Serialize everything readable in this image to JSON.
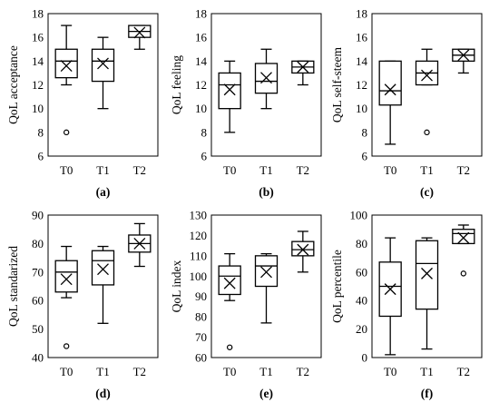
{
  "chart_data": [
    {
      "type": "box",
      "panel_label": "(a)",
      "ylabel": "QoL acceptance",
      "ylim": [
        6,
        18
      ],
      "yticks": [
        "6",
        "8",
        "10",
        "12",
        "14",
        "16",
        "18"
      ],
      "categories": [
        "T0",
        "T1",
        "T2"
      ],
      "boxes": [
        {
          "min": 12,
          "q1": 12.6,
          "median": 14,
          "q3": 15,
          "max": 17,
          "mean": 13.6,
          "outliers": [
            8
          ]
        },
        {
          "min": 10,
          "q1": 12.3,
          "median": 14,
          "q3": 15,
          "max": 16,
          "mean": 13.8,
          "outliers": []
        },
        {
          "min": 15,
          "q1": 16,
          "median": 16.5,
          "q3": 17,
          "max": 17,
          "mean": 16.4,
          "outliers": []
        }
      ]
    },
    {
      "type": "box",
      "panel_label": "(b)",
      "ylabel": "QoL feeling",
      "ylim": [
        6,
        18
      ],
      "yticks": [
        "6",
        "8",
        "10",
        "12",
        "14",
        "16",
        "18"
      ],
      "categories": [
        "T0",
        "T1",
        "T2"
      ],
      "boxes": [
        {
          "min": 8,
          "q1": 10,
          "median": 12,
          "q3": 13,
          "max": 14,
          "mean": 11.6,
          "outliers": []
        },
        {
          "min": 10,
          "q1": 11.3,
          "median": 12.3,
          "q3": 13.8,
          "max": 15,
          "mean": 12.6,
          "outliers": []
        },
        {
          "min": 12,
          "q1": 13,
          "median": 13.5,
          "q3": 14,
          "max": 14,
          "mean": 13.5,
          "outliers": []
        }
      ]
    },
    {
      "type": "box",
      "panel_label": "(c)",
      "ylabel": "QoL self-steem",
      "ylim": [
        6,
        18
      ],
      "yticks": [
        "6",
        "8",
        "10",
        "12",
        "14",
        "16",
        "18"
      ],
      "categories": [
        "T0",
        "T1",
        "T2"
      ],
      "boxes": [
        {
          "min": 7,
          "q1": 10.3,
          "median": 11.5,
          "q3": 14,
          "max": 14,
          "mean": 11.6,
          "outliers": []
        },
        {
          "min": 12,
          "q1": 12,
          "median": 13,
          "q3": 14,
          "max": 15,
          "mean": 12.8,
          "outliers": [
            8
          ]
        },
        {
          "min": 13,
          "q1": 14,
          "median": 14.5,
          "q3": 15,
          "max": 15,
          "mean": 14.5,
          "outliers": []
        }
      ]
    },
    {
      "type": "box",
      "panel_label": "(d)",
      "ylabel": "QoL standarized",
      "ylim": [
        40,
        90
      ],
      "yticks": [
        "40",
        "50",
        "60",
        "70",
        "80",
        "90"
      ],
      "categories": [
        "T0",
        "T1",
        "T2"
      ],
      "boxes": [
        {
          "min": 61,
          "q1": 63,
          "median": 70,
          "q3": 74,
          "max": 79,
          "mean": 67.5,
          "outliers": [
            44
          ]
        },
        {
          "min": 52,
          "q1": 65.5,
          "median": 74,
          "q3": 77.5,
          "max": 79,
          "mean": 71,
          "outliers": []
        },
        {
          "min": 72,
          "q1": 77,
          "median": 80,
          "q3": 83,
          "max": 87,
          "mean": 80,
          "outliers": []
        }
      ]
    },
    {
      "type": "box",
      "panel_label": "(e)",
      "ylabel": "QoL index",
      "ylim": [
        60,
        130
      ],
      "yticks": [
        "60",
        "70",
        "80",
        "90",
        "100",
        "110",
        "120",
        "130"
      ],
      "categories": [
        "T0",
        "T1",
        "T2"
      ],
      "boxes": [
        {
          "min": 88,
          "q1": 91,
          "median": 100,
          "q3": 105,
          "max": 111,
          "mean": 96.5,
          "outliers": [
            65
          ]
        },
        {
          "min": 77,
          "q1": 95,
          "median": 105,
          "q3": 110,
          "max": 111,
          "mean": 102,
          "outliers": []
        },
        {
          "min": 102,
          "q1": 110,
          "median": 113,
          "q3": 117,
          "max": 122,
          "mean": 113,
          "outliers": []
        }
      ]
    },
    {
      "type": "box",
      "panel_label": "(f)",
      "ylabel": "QoL percentile",
      "ylim": [
        0,
        100
      ],
      "yticks": [
        "0",
        "20",
        "40",
        "60",
        "80",
        "100"
      ],
      "categories": [
        "T0",
        "T1",
        "T2"
      ],
      "boxes": [
        {
          "min": 2,
          "q1": 29,
          "median": 50,
          "q3": 67,
          "max": 84,
          "mean": 48,
          "outliers": []
        },
        {
          "min": 6,
          "q1": 34,
          "median": 66,
          "q3": 82,
          "max": 84,
          "mean": 59,
          "outliers": []
        },
        {
          "min": 80,
          "q1": 80,
          "median": 87,
          "q3": 90,
          "max": 93,
          "mean": 84,
          "outliers": [
            59
          ]
        }
      ]
    }
  ]
}
